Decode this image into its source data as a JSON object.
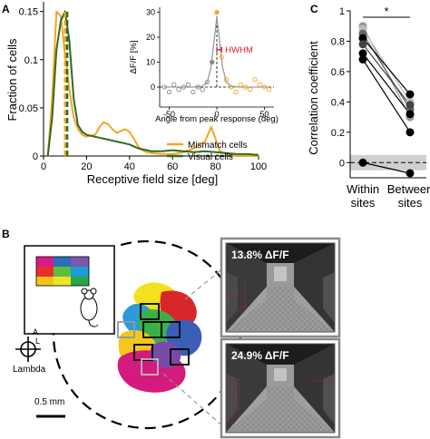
{
  "panel_letters": {
    "a": "A",
    "b": "B",
    "c": "C"
  },
  "panel_a": {
    "ylabel": "Fraction of cells",
    "xlabel": "Receptive field size [deg]",
    "legend": [
      "Mismatch cells",
      "Visual cells"
    ],
    "inset": {
      "ylabel": "ΔF/F [%]",
      "xlabel": "Angle from peak response (deg)",
      "annotation": "HWHM"
    }
  },
  "panel_b": {
    "lambda_label": "Lambda",
    "axis_a": "A",
    "axis_l": "L",
    "scale_bar_label": "0.5 mm",
    "frame_top_label": "13.8% ΔF/F",
    "frame_bottom_label": "24.9% ΔF/F"
  },
  "panel_c": {
    "ylabel": "Correlation coefficient",
    "significance": "*"
  },
  "colors": {
    "mismatch": "#f5a623",
    "visual": "#2e6b1f",
    "inset_grey": "#888888",
    "hwhm_red": "#d0202e",
    "shade": "#cfcfcf"
  },
  "chart_data": [
    {
      "type": "line",
      "panel": "A",
      "xlabel": "Receptive field size [deg]",
      "ylabel": "Fraction of cells",
      "xlim": [
        0,
        100
      ],
      "ylim": [
        0,
        0.16
      ],
      "xticks": [
        0,
        20,
        40,
        60,
        80,
        100
      ],
      "yticks": [
        0,
        0.05,
        0.1,
        0.15
      ],
      "ytick_labels": [
        "0",
        "0.05",
        "0.1",
        "0.15"
      ],
      "series": [
        {
          "name": "Mismatch cells",
          "color": "#f5a623",
          "median": 10,
          "x": [
            2,
            4,
            6,
            8,
            10,
            12,
            14,
            16,
            18,
            20,
            22,
            24,
            26,
            28,
            30,
            32,
            34,
            36,
            38,
            40,
            42,
            44,
            46,
            48,
            50,
            55,
            60,
            65,
            70,
            75,
            78,
            80,
            82,
            85,
            90,
            95,
            100
          ],
          "y": [
            0.0,
            0.06,
            0.15,
            0.145,
            0.105,
            0.07,
            0.04,
            0.028,
            0.022,
            0.02,
            0.021,
            0.022,
            0.03,
            0.035,
            0.033,
            0.028,
            0.024,
            0.026,
            0.028,
            0.025,
            0.018,
            0.01,
            0.006,
            0.004,
            0.003,
            0.002,
            0.002,
            0.004,
            0.008,
            0.015,
            0.03,
            0.018,
            0.005,
            0.002,
            0.0,
            0.0,
            0.0
          ]
        },
        {
          "name": "Visual cells",
          "color": "#2e6b1f",
          "median": 11,
          "x": [
            2,
            4,
            6,
            8,
            10,
            12,
            14,
            16,
            18,
            20,
            22,
            24,
            26,
            28,
            30,
            32,
            34,
            36,
            38,
            40,
            42,
            44,
            46,
            48,
            50,
            55,
            60,
            65,
            70,
            75,
            80,
            85,
            90,
            95,
            100
          ],
          "y": [
            0.0,
            0.04,
            0.11,
            0.14,
            0.15,
            0.12,
            0.06,
            0.032,
            0.025,
            0.022,
            0.021,
            0.02,
            0.019,
            0.018,
            0.017,
            0.016,
            0.015,
            0.014,
            0.013,
            0.012,
            0.01,
            0.008,
            0.007,
            0.006,
            0.005,
            0.005,
            0.006,
            0.005,
            0.004,
            0.005,
            0.004,
            0.003,
            0.002,
            0.002,
            0.001
          ]
        }
      ]
    },
    {
      "type": "scatter",
      "panel": "A inset",
      "xlabel": "Angle from peak response (deg)",
      "ylabel": "ΔF/F [%]",
      "xlim": [
        -60,
        60
      ],
      "ylim": [
        -8,
        32
      ],
      "xticks": [
        -50,
        0,
        50
      ],
      "yticks": [
        0,
        10,
        20,
        30
      ],
      "annotation": "HWHM",
      "hwhm": 5,
      "series": [
        {
          "name": "left flank",
          "color": "#888888",
          "x": [
            -55,
            -50,
            -45,
            -40,
            -35,
            -30,
            -25,
            -20,
            -15,
            -10,
            -5
          ],
          "y": [
            0,
            -2,
            1,
            -1,
            0,
            1,
            -2,
            0,
            -1,
            2,
            10
          ]
        },
        {
          "name": "right flank",
          "color": "#f5a623",
          "x": [
            0,
            5,
            10,
            15,
            20,
            25,
            30,
            35,
            40,
            45,
            50,
            55
          ],
          "y": [
            30,
            12,
            3,
            0,
            -2,
            1,
            0,
            -1,
            3,
            1,
            0,
            -1
          ]
        },
        {
          "name": "fit",
          "color": "#888888",
          "x": [
            -55,
            -40,
            -25,
            -15,
            -10,
            -6,
            -3,
            0,
            3,
            6,
            10,
            15,
            25,
            40,
            55
          ],
          "y": [
            0,
            0,
            0,
            0.3,
            2,
            8,
            18,
            28,
            18,
            8,
            2,
            0.3,
            0,
            0,
            0
          ]
        }
      ]
    },
    {
      "type": "scatter",
      "panel": "C",
      "ylabel": "Correlation coefficient",
      "categories": [
        "Within sites",
        "Between sites"
      ],
      "ylim": [
        -0.1,
        1.0
      ],
      "yticks": [
        0,
        0.2,
        0.4,
        0.6,
        0.8,
        1
      ],
      "ytick_labels": [
        "0",
        "0.2",
        "0.4",
        "0.6",
        "0.8",
        "1"
      ],
      "chance_band": [
        -0.05,
        0.05
      ],
      "significance": "*",
      "pairs": [
        {
          "within": 0.9,
          "between": 0.3,
          "color": "#999999"
        },
        {
          "within": 0.88,
          "between": 0.4,
          "color": "#bbbbbb"
        },
        {
          "within": 0.85,
          "between": 0.35,
          "color": "#666666"
        },
        {
          "within": 0.82,
          "between": 0.45,
          "color": "#000000"
        },
        {
          "within": 0.78,
          "between": 0.38,
          "color": "#444444"
        },
        {
          "within": 0.72,
          "between": 0.32,
          "color": "#000000"
        },
        {
          "within": 0.68,
          "between": 0.2,
          "color": "#000000"
        },
        {
          "within": 0.0,
          "between": -0.07,
          "color": "#000000"
        }
      ]
    }
  ]
}
